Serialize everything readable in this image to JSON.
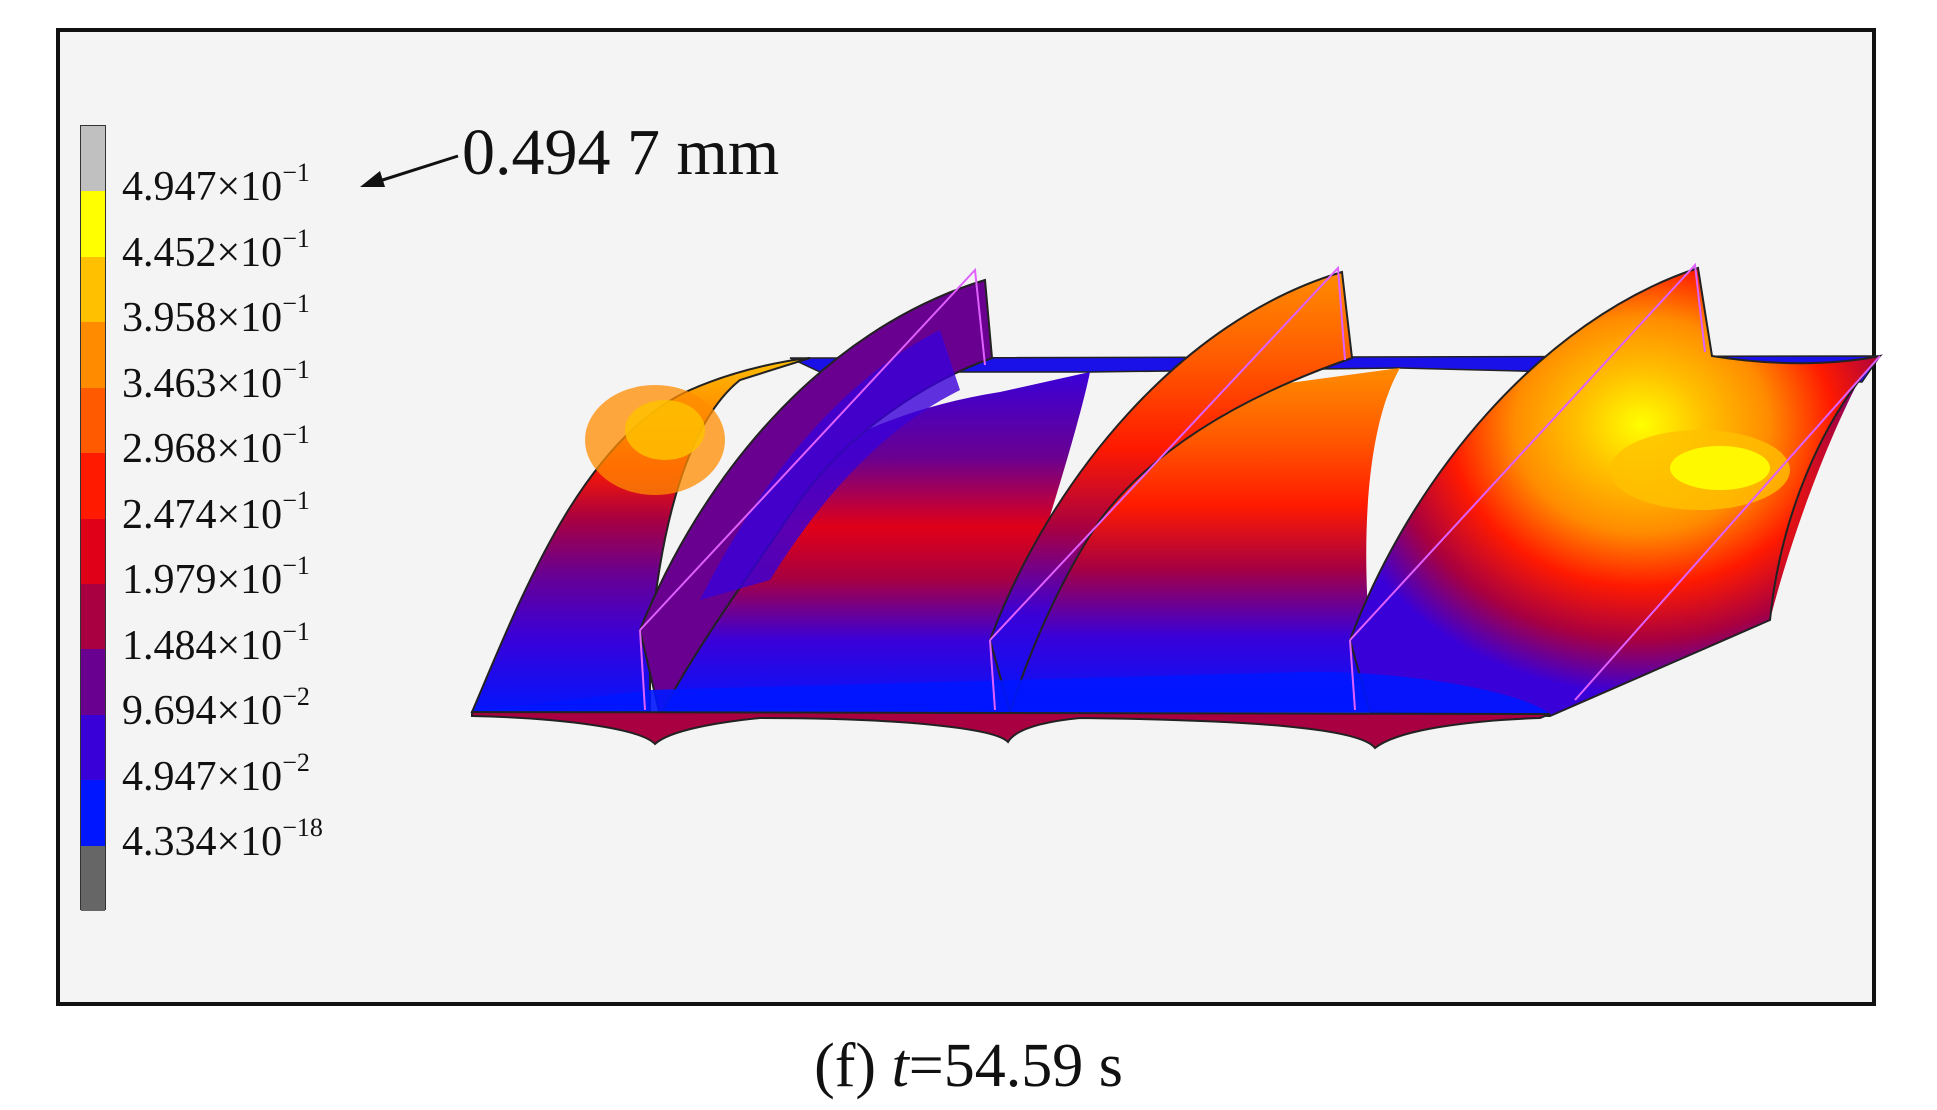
{
  "legend": {
    "entries": [
      {
        "mantissa": "4.947",
        "exp": "−1"
      },
      {
        "mantissa": "4.452",
        "exp": "−1"
      },
      {
        "mantissa": "3.958",
        "exp": "−1"
      },
      {
        "mantissa": "3.463",
        "exp": "−1"
      },
      {
        "mantissa": "2.968",
        "exp": "−1"
      },
      {
        "mantissa": "2.474",
        "exp": "−1"
      },
      {
        "mantissa": "1.979",
        "exp": "−1"
      },
      {
        "mantissa": "1.484",
        "exp": "−1"
      },
      {
        "mantissa": "9.694",
        "exp": "−2"
      },
      {
        "mantissa": "4.947",
        "exp": "−2"
      },
      {
        "mantissa": "4.334",
        "exp": "−18"
      }
    ],
    "colors": [
      "#c0c0c0",
      "#ffff00",
      "#ffc000",
      "#ff8c00",
      "#ff5a00",
      "#ff1a00",
      "#e00018",
      "#a80040",
      "#6a0090",
      "#3a00d8",
      "#0016ff",
      "#666666"
    ]
  },
  "callout": {
    "text": "0.494 7 mm"
  },
  "caption": {
    "prefix": "(f) ",
    "var": "t",
    "rest": "=54.59 s"
  }
}
